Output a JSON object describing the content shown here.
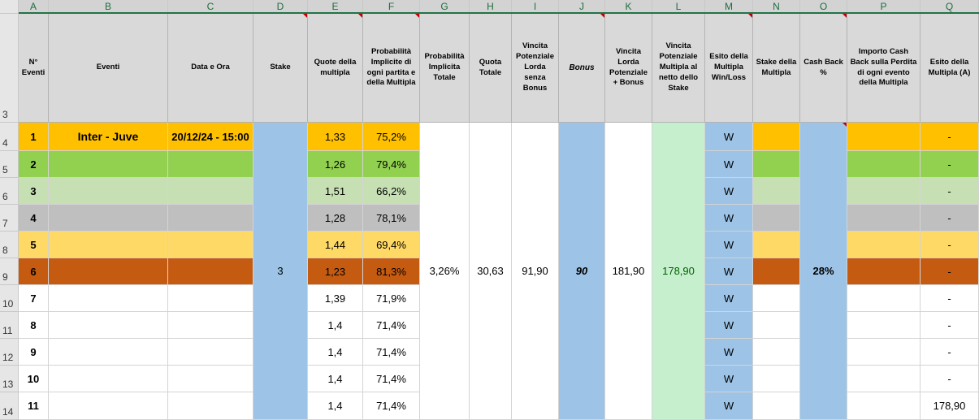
{
  "columns": [
    "A",
    "B",
    "C",
    "D",
    "E",
    "F",
    "G",
    "H",
    "I",
    "J",
    "K",
    "L",
    "M",
    "N",
    "O",
    "P",
    "Q"
  ],
  "header_row": "3",
  "headers": {
    "A": "N° Eventi",
    "B": "Eventi",
    "C": "Data e Ora",
    "D": "Stake",
    "E": "Quote della multipla",
    "F": "Probabilità Implicite di ogni partita e della Multipla",
    "G": "Probabilità Implicita Totale",
    "H": "Quota Totale",
    "I": "Vincita Potenziale Lorda senza Bonus",
    "J": "Bonus",
    "K": "Vincita Lorda Potenziale + Bonus",
    "L": "Vincita Potenziale Multipla al netto dello Stake",
    "M": "Esito della Multipla Win/Loss",
    "N": "Stake della Multipla",
    "O": "Cash Back %",
    "P": "Importo Cash Back sulla Perdita di ogni evento della Multipla",
    "Q": "Esito della Multipla (A)"
  },
  "rows": [
    {
      "row": "4",
      "n": "1",
      "evento": "Inter - Juve",
      "data": "20/12/24 - 15:00",
      "quota": "1,33",
      "prob": "75,2%",
      "esito": "W",
      "q": "-",
      "color": "#ffc000"
    },
    {
      "row": "5",
      "n": "2",
      "evento": "",
      "data": "",
      "quota": "1,26",
      "prob": "79,4%",
      "esito": "W",
      "q": "-",
      "color": "#92d050"
    },
    {
      "row": "6",
      "n": "3",
      "evento": "",
      "data": "",
      "quota": "1,51",
      "prob": "66,2%",
      "esito": "W",
      "q": "-",
      "color": "#c6e0b4"
    },
    {
      "row": "7",
      "n": "4",
      "evento": "",
      "data": "",
      "quota": "1,28",
      "prob": "78,1%",
      "esito": "W",
      "q": "-",
      "color": "#bfbfbf"
    },
    {
      "row": "8",
      "n": "5",
      "evento": "",
      "data": "",
      "quota": "1,44",
      "prob": "69,4%",
      "esito": "W",
      "q": "-",
      "color": "#ffd966"
    },
    {
      "row": "9",
      "n": "6",
      "evento": "",
      "data": "",
      "quota": "1,23",
      "prob": "81,3%",
      "esito": "W",
      "q": "-",
      "color": "#c55a11"
    },
    {
      "row": "10",
      "n": "7",
      "evento": "",
      "data": "",
      "quota": "1,39",
      "prob": "71,9%",
      "esito": "W",
      "q": "-",
      "color": "#ffffff"
    },
    {
      "row": "11",
      "n": "8",
      "evento": "",
      "data": "",
      "quota": "1,4",
      "prob": "71,4%",
      "esito": "W",
      "q": "-",
      "color": "#ffffff"
    },
    {
      "row": "12",
      "n": "9",
      "evento": "",
      "data": "",
      "quota": "1,4",
      "prob": "71,4%",
      "esito": "W",
      "q": "-",
      "color": "#ffffff"
    },
    {
      "row": "13",
      "n": "10",
      "evento": "",
      "data": "",
      "quota": "1,4",
      "prob": "71,4%",
      "esito": "W",
      "q": "-",
      "color": "#ffffff"
    },
    {
      "row": "14",
      "n": "11",
      "evento": "",
      "data": "",
      "quota": "1,4",
      "prob": "71,4%",
      "esito": "W",
      "q": "178,90",
      "color": "#ffffff"
    }
  ],
  "merged": {
    "stake": "3",
    "prob_totale": "3,26%",
    "quota_totale": "30,63",
    "vincita_senza_bonus": "91,90",
    "bonus": "90",
    "vincita_con_bonus": "181,90",
    "vincita_netto": "178,90",
    "cash_back": "28%"
  },
  "colors": {
    "blue": "#9dc3e6",
    "light_green": "#c6efce",
    "net_text": "#006100",
    "header_gray": "#d9d9d9",
    "excel_green": "#217346"
  }
}
